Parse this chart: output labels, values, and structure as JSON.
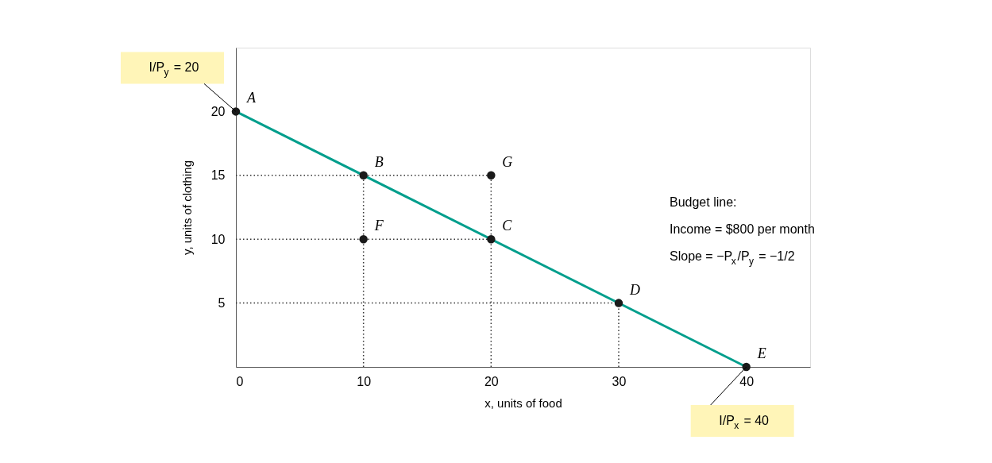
{
  "chart_data": {
    "type": "line",
    "xlabel": "x, units of food",
    "ylabel": "y, units of clothing",
    "xlim": [
      0,
      45
    ],
    "ylim": [
      0,
      25
    ],
    "xticks": [
      0,
      10,
      20,
      30,
      40
    ],
    "yticks": [
      5,
      10,
      15,
      20
    ],
    "grid": false,
    "series": [
      {
        "color": "#009e8c",
        "x": [
          0,
          40
        ],
        "values": [
          20,
          0
        ],
        "marker": "none",
        "line_style": "solid"
      },
      {
        "type": "line",
        "color": "#333333",
        "x": [
          0,
          20
        ],
        "values": [
          15,
          15
        ],
        "marker": "none",
        "line_style": "dotted"
      },
      {
        "type": "line",
        "color": "#333333",
        "x": [
          0,
          20
        ],
        "values": [
          10,
          10
        ],
        "marker": "none",
        "line_style": "dotted"
      },
      {
        "type": "line",
        "color": "#333333",
        "x": [
          0,
          30
        ],
        "values": [
          5,
          5
        ],
        "marker": "none",
        "line_style": "dotted"
      },
      {
        "type": "line",
        "color": "#333333",
        "x": [
          10,
          10
        ],
        "values": [
          0,
          15
        ],
        "marker": "none",
        "line_style": "dotted"
      },
      {
        "type": "line",
        "color": "#333333",
        "x": [
          20,
          20
        ],
        "values": [
          0,
          15
        ],
        "marker": "none",
        "line_style": "dotted"
      },
      {
        "type": "line",
        "color": "#333333",
        "x": [
          30,
          30
        ],
        "values": [
          0,
          5
        ],
        "marker": "none",
        "line_style": "dotted"
      },
      {
        "type": "scatter",
        "color": "#1a1a1a",
        "x": [
          0,
          10,
          20,
          30,
          40,
          10,
          20
        ],
        "values": [
          20,
          15,
          10,
          5,
          0,
          10,
          15
        ],
        "marker": "circle"
      }
    ],
    "annotations": [
      {
        "text": "A",
        "x": 0,
        "y": 20
      },
      {
        "text": "B",
        "x": 10,
        "y": 15
      },
      {
        "text": "C",
        "x": 20,
        "y": 10
      },
      {
        "text": "D",
        "x": 30,
        "y": 5
      },
      {
        "text": "E",
        "x": 40,
        "y": 0
      },
      {
        "text": "F",
        "x": 10,
        "y": 10
      },
      {
        "text": "G",
        "x": 20,
        "y": 15
      },
      {
        "text": "I/P$_{y}$ = 20",
        "x": 0,
        "y": 20
      },
      {
        "text": "I/P$_{x}$ = 40",
        "x": 40,
        "y": 0
      },
      "Budget line:",
      "Income = $800 per month",
      "Slope = −P$_{x}$/P$_{y}$ = −1/2"
    ]
  }
}
